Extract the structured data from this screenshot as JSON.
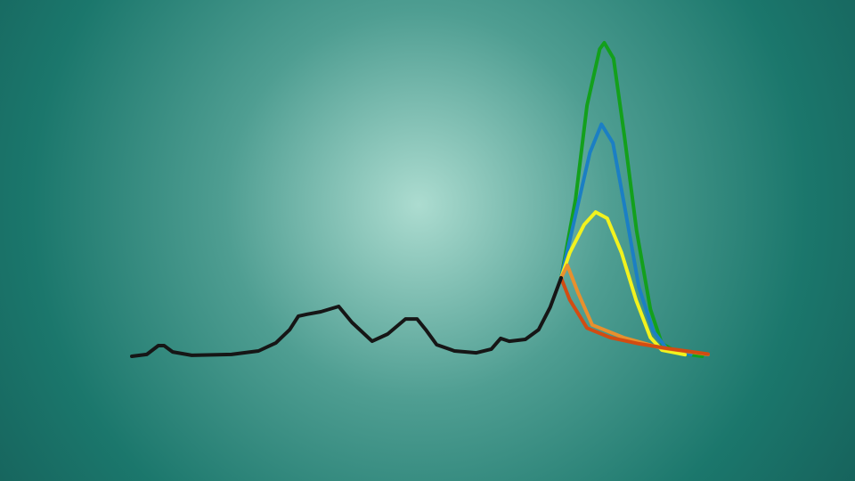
{
  "chart_data": {
    "type": "line",
    "series": [
      {
        "color": "#13a01c",
        "x": [
          74.5,
          77,
          79,
          81.2,
          82,
          83.6,
          85.5,
          87.6,
          90,
          92,
          95,
          99
        ],
        "values": [
          25,
          50,
          80,
          98,
          100,
          95,
          70,
          40,
          15,
          4,
          1,
          0
        ]
      },
      {
        "color": "#1b7fc4",
        "x": [
          74.5,
          77,
          79.5,
          81.5,
          83.5,
          85.5,
          88,
          90.5,
          93,
          97
        ],
        "values": [
          25,
          45,
          65,
          74,
          68,
          48,
          22,
          8,
          2,
          0.5
        ]
      },
      {
        "color": "#f2f21e",
        "x": [
          74.5,
          76,
          78.5,
          80.5,
          82.5,
          85,
          87.5,
          90,
          92,
          96
        ],
        "values": [
          25,
          33,
          42,
          46,
          44,
          33,
          18,
          6,
          2,
          0.5
        ]
      },
      {
        "color": "#e8902e",
        "x": [
          74.5,
          75.6,
          77.5,
          79.9,
          85.3,
          91.5,
          100
        ],
        "values": [
          25,
          29,
          20,
          10,
          6,
          2.8,
          0.6
        ]
      },
      {
        "color": "#d24c12",
        "x": [
          74.5,
          76,
          79,
          83,
          88,
          93,
          100
        ],
        "values": [
          25,
          18,
          9,
          6,
          4,
          2.5,
          0.7
        ]
      },
      {
        "color": "#161616",
        "x": [
          0,
          2.6,
          4.6,
          5.6,
          7.1,
          10.4,
          17.3,
          22,
          25,
          27.4,
          28.9,
          30.4,
          32.8,
          35.9,
          38.2,
          41.7,
          44.4,
          47.5,
          49.5,
          51,
          52.9,
          56,
          59.8,
          62.4,
          64,
          65.5,
          68.3,
          70.6,
          72.6,
          74.5
        ],
        "values": [
          0,
          0.6,
          3.4,
          3.4,
          1.4,
          0.3,
          0.6,
          1.7,
          4.3,
          8.5,
          12.8,
          13.4,
          14.2,
          15.9,
          10.8,
          4.8,
          7.1,
          11.9,
          11.9,
          8.5,
          3.7,
          1.7,
          1.1,
          2.3,
          5.7,
          4.8,
          5.4,
          8.5,
          15.6,
          25
        ]
      }
    ]
  }
}
